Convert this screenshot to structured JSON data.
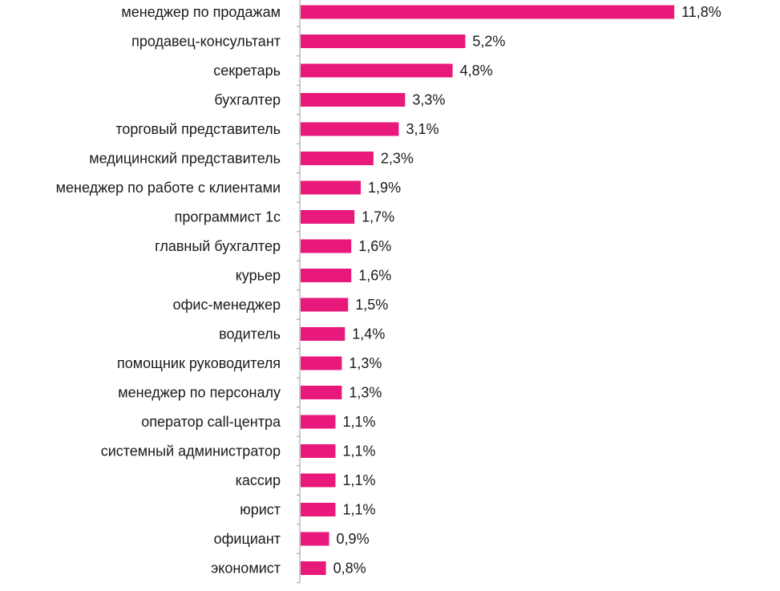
{
  "chart_data": {
    "type": "bar",
    "orientation": "horizontal",
    "bar_color": "#e8197a",
    "grid": false,
    "value_format": "percent_comma_one_decimal",
    "categories": [
      "менеджер по продажам",
      "продавец-консультант",
      "секретарь",
      "бухгалтер",
      "торговый представитель",
      "медицинский представитель",
      "менеджер по работе с клиентами",
      "программист 1с",
      "главный бухгалтер",
      "курьер",
      "офис-менеджер",
      "водитель",
      "помощник руководителя",
      "менеджер по персоналу",
      "оператор call-центра",
      "системный администратор",
      "кассир",
      "юрист",
      "официант",
      "экономист"
    ],
    "values": [
      11.8,
      5.2,
      4.8,
      3.3,
      3.1,
      2.3,
      1.9,
      1.7,
      1.6,
      1.6,
      1.5,
      1.4,
      1.3,
      1.3,
      1.1,
      1.1,
      1.1,
      1.1,
      0.9,
      0.8
    ],
    "value_labels": [
      "11,8%",
      "5,2%",
      "4,8%",
      "3,3%",
      "3,1%",
      "2,3%",
      "1,9%",
      "1,7%",
      "1,6%",
      "1,6%",
      "1,5%",
      "1,4%",
      "1,3%",
      "1,3%",
      "1,1%",
      "1,1%",
      "1,1%",
      "1,1%",
      "0,9%",
      "0,8%"
    ],
    "xlim": [
      0,
      12
    ]
  }
}
